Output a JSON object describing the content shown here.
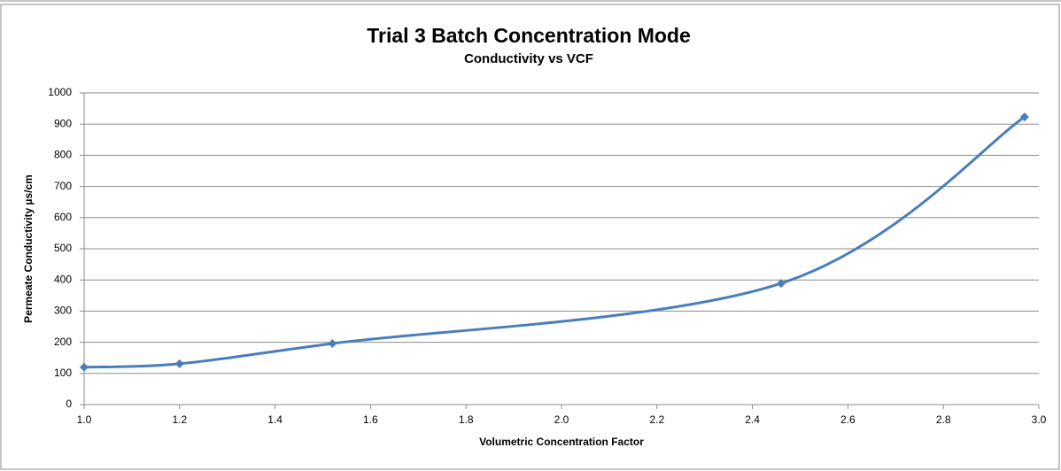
{
  "chart_data": {
    "type": "line",
    "title": "Trial 3 Batch Concentration Mode",
    "subtitle": "Conductivity vs VCF",
    "x_label": "Volumetric Concentration Factor",
    "y_label": "Permeate Conductivity µs/cm",
    "series": [
      {
        "name": "Permeate Conductivity",
        "color": "#4a7ebb",
        "x": [
          1.0,
          1.2,
          1.52,
          2.46,
          2.97
        ],
        "values": [
          120,
          131,
          196,
          389,
          923
        ]
      }
    ],
    "xlim": [
      1,
      3
    ],
    "xticks": [
      {
        "value": 1,
        "label": "1.0"
      },
      1.2,
      1.4,
      1.6,
      1.8,
      {
        "value": 2,
        "label": "2.0"
      },
      2.2,
      2.4,
      2.6,
      2.8,
      {
        "value": 3,
        "label": "3.0"
      }
    ],
    "ylim": [
      0,
      1000
    ],
    "yticks": [
      0,
      100,
      200,
      300,
      400,
      500,
      600,
      700,
      800,
      900,
      1000
    ],
    "grid": true,
    "smooth": true
  }
}
